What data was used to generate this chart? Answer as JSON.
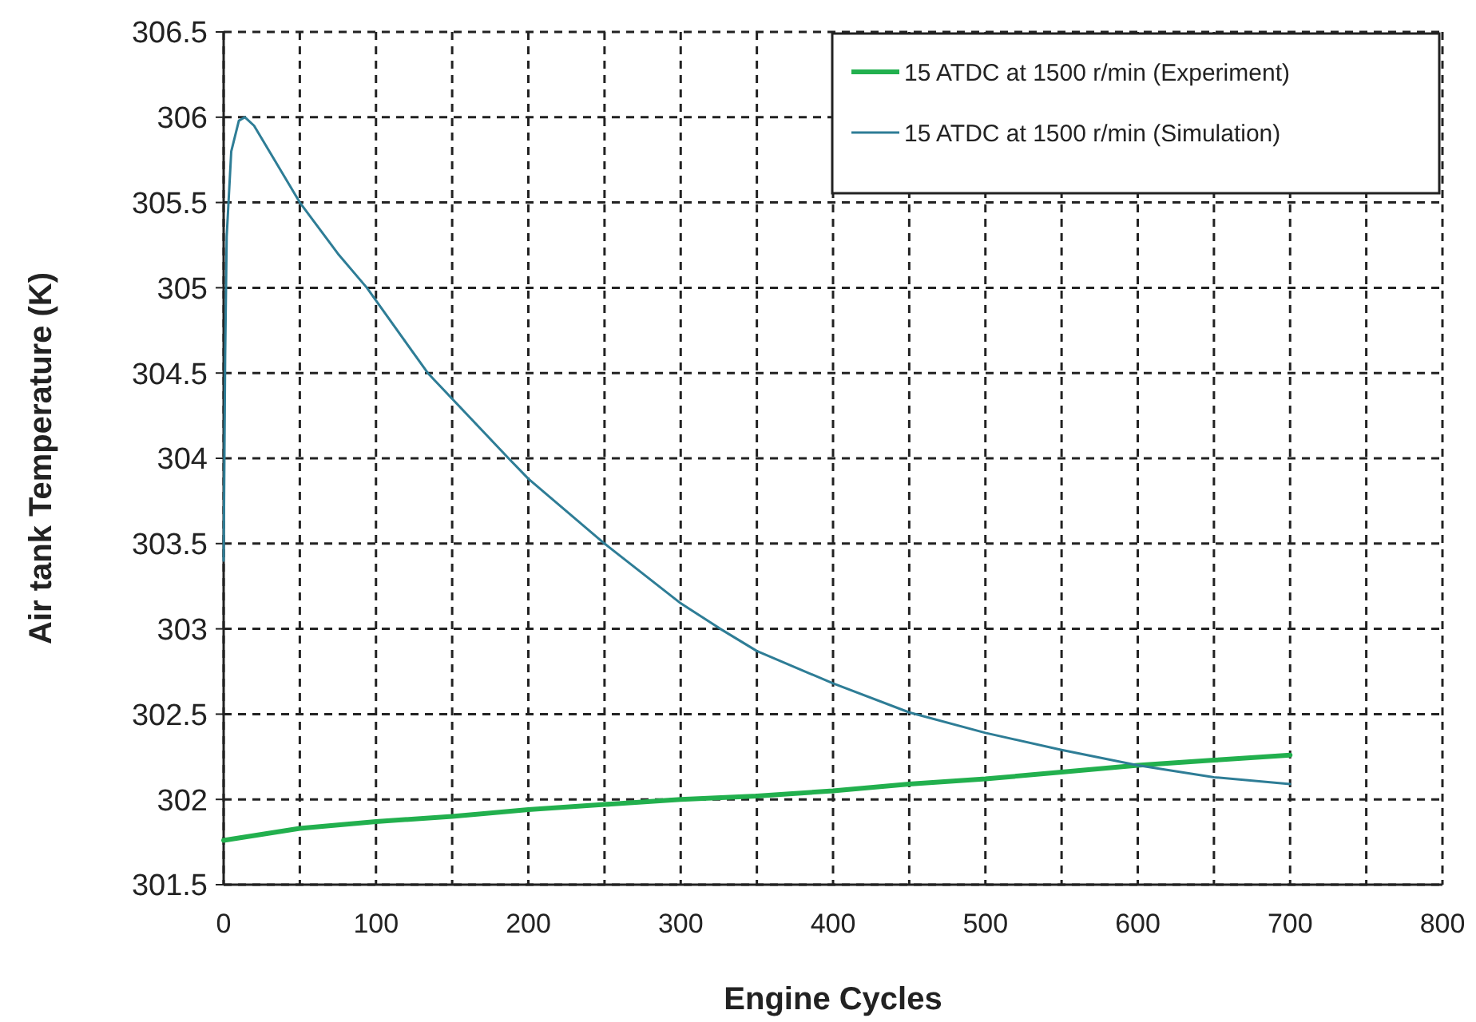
{
  "chart_data": {
    "type": "line",
    "xlabel": "Engine Cycles",
    "ylabel": "Air tank Temperature (K)",
    "xlim": [
      0,
      800
    ],
    "xticks": [
      0,
      {
        "value": 50,
        "label": null
      },
      100,
      {
        "value": 150,
        "label": null
      },
      200,
      {
        "value": 250,
        "label": null
      },
      300,
      {
        "value": 350,
        "label": null
      },
      400,
      {
        "value": 450,
        "label": null
      },
      500,
      {
        "value": 550,
        "label": null
      },
      600,
      {
        "value": 650,
        "label": null
      },
      700,
      {
        "value": 750,
        "label": null
      },
      800
    ],
    "ylim": [
      301.5,
      306.5
    ],
    "yticks": [
      301.5,
      302,
      302.5,
      303,
      303.5,
      304,
      304.5,
      305,
      305.5,
      306,
      306.5
    ],
    "grid": true,
    "legend": "top right",
    "line_style": "solid",
    "marker": "none",
    "series": [
      {
        "name": "15 ATDC at 1500 r/min (Experiment)",
        "color": "#22b04e",
        "x": [
          0,
          50,
          100,
          150,
          200,
          250,
          300,
          350,
          400,
          450,
          500,
          550,
          600,
          650,
          700
        ],
        "values": [
          301.76,
          301.83,
          301.87,
          301.9,
          301.94,
          301.97,
          302.0,
          302.02,
          302.05,
          302.09,
          302.12,
          302.16,
          302.2,
          302.23,
          302.26
        ]
      },
      {
        "name": "15 ATDC at 1500 r/min (Simulation)",
        "color": "#2e7d96",
        "x": [
          0,
          1,
          2,
          5,
          10,
          14,
          20,
          30,
          50,
          75,
          94,
          134,
          187,
          200,
          250,
          300,
          326,
          350,
          400,
          450,
          500,
          550,
          600,
          650,
          700
        ],
        "values": [
          303.4,
          304.6,
          305.3,
          305.8,
          305.98,
          306.0,
          305.95,
          305.8,
          305.5,
          305.2,
          305.0,
          304.5,
          304.0,
          303.88,
          303.5,
          303.15,
          303.0,
          302.87,
          302.68,
          302.51,
          302.39,
          302.29,
          302.2,
          302.13,
          302.09
        ]
      }
    ]
  }
}
